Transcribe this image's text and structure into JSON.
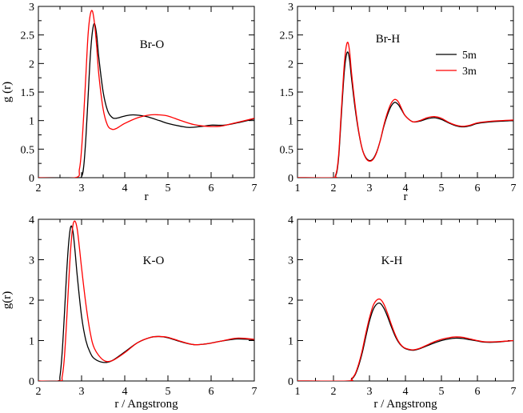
{
  "chart_data": [
    {
      "type": "line",
      "id": "br-o",
      "title": "Br-O",
      "xlabel": "r",
      "ylabel": "g (r)",
      "xlim": [
        2,
        7
      ],
      "ylim": [
        0,
        3
      ],
      "xticks": [
        "2",
        "3",
        "4",
        "5",
        "6",
        "7"
      ],
      "yticks": [
        "0",
        "0.5",
        "1",
        "1.5",
        "2",
        "2.5",
        "3"
      ],
      "legend": false,
      "series": [
        {
          "name": "5m",
          "color": "#000000",
          "x": [
            2.0,
            2.9,
            3.0,
            3.05,
            3.1,
            3.15,
            3.2,
            3.25,
            3.3,
            3.35,
            3.4,
            3.5,
            3.6,
            3.7,
            3.8,
            4.0,
            4.2,
            4.5,
            4.8,
            5.0,
            5.3,
            5.5,
            5.8,
            6.0,
            6.3,
            6.6,
            7.0
          ],
          "y": [
            0,
            0,
            0.02,
            0.2,
            0.7,
            1.4,
            2.1,
            2.55,
            2.7,
            2.5,
            2.1,
            1.5,
            1.18,
            1.06,
            1.04,
            1.08,
            1.1,
            1.07,
            1.0,
            0.95,
            0.9,
            0.88,
            0.9,
            0.92,
            0.92,
            0.96,
            1.03
          ]
        },
        {
          "name": "3m",
          "color": "#ff0000",
          "x": [
            2.0,
            2.85,
            2.95,
            3.0,
            3.05,
            3.1,
            3.15,
            3.2,
            3.25,
            3.3,
            3.35,
            3.4,
            3.5,
            3.6,
            3.7,
            3.8,
            4.0,
            4.3,
            4.6,
            4.8,
            5.0,
            5.3,
            5.6,
            5.9,
            6.2,
            6.5,
            7.0
          ],
          "y": [
            0,
            0,
            0.15,
            0.5,
            1.1,
            1.8,
            2.5,
            2.85,
            2.92,
            2.7,
            2.3,
            1.8,
            1.2,
            0.92,
            0.85,
            0.86,
            0.95,
            1.05,
            1.1,
            1.1,
            1.08,
            1.0,
            0.93,
            0.9,
            0.9,
            0.95,
            1.04
          ]
        }
      ]
    },
    {
      "type": "line",
      "id": "br-h",
      "title": "Br-H",
      "xlabel": "r",
      "ylabel": "",
      "xlim": [
        1,
        7
      ],
      "ylim": [
        0,
        3
      ],
      "xticks": [
        "1",
        "2",
        "3",
        "4",
        "5",
        "6",
        "7"
      ],
      "yticks": [
        "0",
        "0.5",
        "1",
        "1.5",
        "2",
        "2.5",
        "3"
      ],
      "legend": true,
      "legend_position": "top-right",
      "series": [
        {
          "name": "5m",
          "color": "#000000",
          "x": [
            1.0,
            2.0,
            2.05,
            2.1,
            2.15,
            2.2,
            2.25,
            2.3,
            2.35,
            2.4,
            2.45,
            2.5,
            2.6,
            2.7,
            2.8,
            2.9,
            3.0,
            3.1,
            3.2,
            3.3,
            3.4,
            3.5,
            3.6,
            3.7,
            3.8,
            3.9,
            4.0,
            4.2,
            4.4,
            4.6,
            4.8,
            5.0,
            5.2,
            5.4,
            5.6,
            5.8,
            6.0,
            6.4,
            7.0
          ],
          "y": [
            0,
            0,
            0.02,
            0.12,
            0.4,
            0.9,
            1.4,
            1.85,
            2.12,
            2.2,
            2.05,
            1.75,
            1.22,
            0.8,
            0.5,
            0.35,
            0.3,
            0.33,
            0.45,
            0.65,
            0.9,
            1.1,
            1.25,
            1.32,
            1.28,
            1.18,
            1.08,
            0.98,
            0.99,
            1.03,
            1.05,
            1.02,
            0.96,
            0.91,
            0.89,
            0.91,
            0.95,
            0.98,
            1.0
          ]
        },
        {
          "name": "3m",
          "color": "#ff0000",
          "x": [
            1.0,
            2.0,
            2.05,
            2.1,
            2.15,
            2.2,
            2.25,
            2.3,
            2.35,
            2.4,
            2.45,
            2.5,
            2.6,
            2.7,
            2.8,
            2.9,
            3.0,
            3.1,
            3.2,
            3.3,
            3.4,
            3.5,
            3.6,
            3.7,
            3.8,
            3.9,
            4.0,
            4.2,
            4.4,
            4.6,
            4.8,
            5.0,
            5.2,
            5.4,
            5.6,
            5.8,
            6.0,
            6.4,
            7.0
          ],
          "y": [
            0,
            0,
            0.03,
            0.15,
            0.45,
            0.98,
            1.5,
            1.98,
            2.28,
            2.37,
            2.2,
            1.85,
            1.28,
            0.82,
            0.5,
            0.34,
            0.29,
            0.32,
            0.44,
            0.65,
            0.92,
            1.14,
            1.3,
            1.37,
            1.33,
            1.2,
            1.08,
            0.98,
            1.0,
            1.05,
            1.07,
            1.04,
            0.97,
            0.92,
            0.9,
            0.92,
            0.96,
            0.99,
            1.01
          ]
        }
      ]
    },
    {
      "type": "line",
      "id": "k-o",
      "title": "K-O",
      "xlabel": "r  / Angstrong",
      "ylabel": "g(r)",
      "xlim": [
        2,
        7
      ],
      "ylim": [
        0,
        4
      ],
      "xticks": [
        "2",
        "3",
        "4",
        "5",
        "6",
        "7"
      ],
      "yticks": [
        "0",
        "1",
        "2",
        "3",
        "4"
      ],
      "legend": false,
      "series": [
        {
          "name": "5m",
          "color": "#000000",
          "x": [
            2.0,
            2.45,
            2.5,
            2.55,
            2.6,
            2.65,
            2.7,
            2.75,
            2.8,
            2.85,
            2.9,
            3.0,
            3.1,
            3.2,
            3.3,
            3.5,
            3.7,
            4.0,
            4.3,
            4.6,
            4.8,
            5.0,
            5.3,
            5.6,
            5.9,
            6.2,
            6.6,
            7.0
          ],
          "y": [
            0,
            0,
            0.12,
            0.7,
            1.6,
            2.6,
            3.4,
            3.82,
            3.7,
            3.2,
            2.6,
            1.6,
            1.0,
            0.7,
            0.55,
            0.46,
            0.5,
            0.72,
            0.95,
            1.08,
            1.1,
            1.07,
            0.97,
            0.9,
            0.92,
            0.98,
            1.04,
            1.02
          ]
        },
        {
          "name": "3m",
          "color": "#ff0000",
          "x": [
            2.0,
            2.5,
            2.55,
            2.6,
            2.65,
            2.7,
            2.75,
            2.8,
            2.85,
            2.9,
            2.95,
            3.0,
            3.1,
            3.2,
            3.3,
            3.5,
            3.7,
            4.0,
            4.3,
            4.6,
            4.8,
            5.0,
            5.3,
            5.6,
            5.9,
            6.2,
            6.6,
            7.0
          ],
          "y": [
            0,
            0,
            0.1,
            0.55,
            1.4,
            2.4,
            3.3,
            3.85,
            3.95,
            3.75,
            3.3,
            2.8,
            1.9,
            1.2,
            0.8,
            0.52,
            0.5,
            0.7,
            0.95,
            1.08,
            1.1,
            1.08,
            0.98,
            0.9,
            0.92,
            0.98,
            1.06,
            1.03
          ]
        }
      ]
    },
    {
      "type": "line",
      "id": "k-h",
      "title": "K-H",
      "xlabel": "r  / Angstrong",
      "ylabel": "",
      "xlim": [
        1,
        7
      ],
      "ylim": [
        0,
        4
      ],
      "xticks": [
        "1",
        "2",
        "3",
        "4",
        "5",
        "6",
        "7"
      ],
      "yticks": [
        "0",
        "1",
        "2",
        "3",
        "4"
      ],
      "legend": false,
      "series": [
        {
          "name": "5m",
          "color": "#000000",
          "x": [
            1.0,
            2.4,
            2.5,
            2.6,
            2.7,
            2.8,
            2.9,
            3.0,
            3.1,
            3.2,
            3.3,
            3.4,
            3.5,
            3.6,
            3.7,
            3.8,
            3.9,
            4.0,
            4.2,
            4.4,
            4.6,
            4.8,
            5.0,
            5.2,
            5.4,
            5.6,
            5.8,
            6.0,
            6.2,
            6.5,
            7.0
          ],
          "y": [
            0,
            0,
            0.04,
            0.15,
            0.38,
            0.7,
            1.1,
            1.48,
            1.76,
            1.9,
            1.92,
            1.8,
            1.6,
            1.36,
            1.14,
            0.97,
            0.86,
            0.8,
            0.76,
            0.8,
            0.87,
            0.94,
            1.0,
            1.04,
            1.06,
            1.05,
            1.02,
            0.99,
            0.96,
            0.96,
            1.0
          ]
        },
        {
          "name": "3m",
          "color": "#ff0000",
          "x": [
            1.0,
            2.4,
            2.5,
            2.6,
            2.7,
            2.8,
            2.9,
            3.0,
            3.1,
            3.2,
            3.3,
            3.4,
            3.5,
            3.6,
            3.7,
            3.8,
            3.9,
            4.0,
            4.2,
            4.4,
            4.6,
            4.8,
            5.0,
            5.2,
            5.4,
            5.6,
            5.8,
            6.0,
            6.2,
            6.5,
            7.0
          ],
          "y": [
            0,
            0,
            0.05,
            0.17,
            0.42,
            0.76,
            1.18,
            1.56,
            1.86,
            2.0,
            2.02,
            1.9,
            1.68,
            1.42,
            1.18,
            0.99,
            0.87,
            0.81,
            0.77,
            0.81,
            0.89,
            0.97,
            1.03,
            1.07,
            1.09,
            1.08,
            1.04,
            1.0,
            0.97,
            0.97,
            1.0
          ]
        }
      ]
    }
  ]
}
